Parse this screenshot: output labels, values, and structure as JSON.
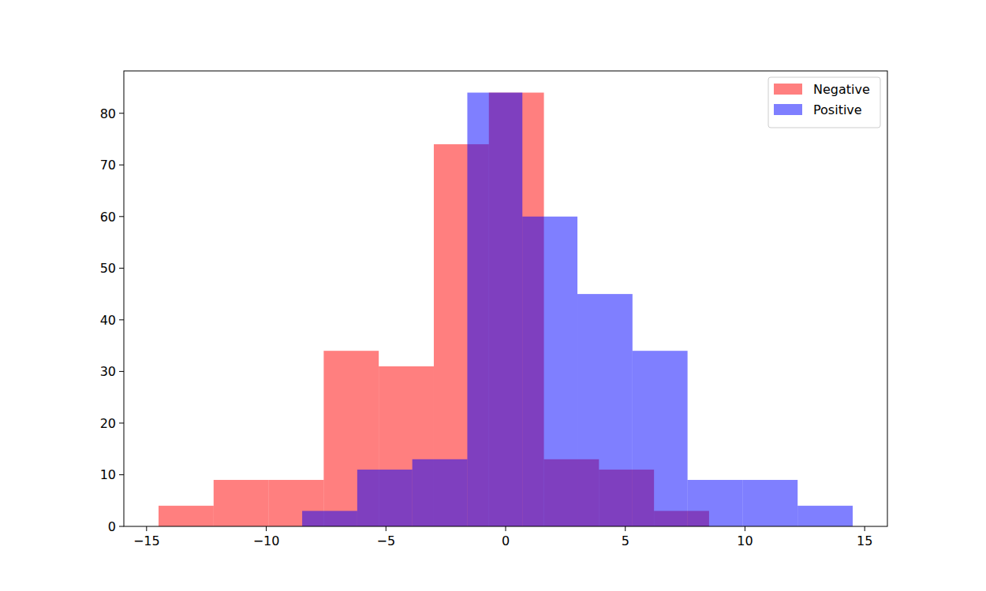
{
  "chart_data": {
    "type": "histogram",
    "series": [
      {
        "name": "Negative",
        "color": "red",
        "bins": [
          -14.5,
          -12.2,
          -9.9,
          -7.6,
          -5.3,
          -3.0,
          -0.7,
          1.6,
          3.9,
          6.2,
          8.5
        ],
        "values": [
          4,
          9,
          9,
          34,
          31,
          74,
          84,
          13,
          11,
          3
        ]
      },
      {
        "name": "Positive",
        "color": "blue",
        "bins": [
          -8.5,
          -6.2,
          -3.9,
          -1.6,
          0.7,
          3.0,
          5.3,
          7.6,
          9.9,
          12.2,
          14.5
        ],
        "values": [
          3,
          11,
          13,
          84,
          60,
          45,
          34,
          9,
          9,
          4
        ]
      }
    ],
    "xlim": [
      -15.95,
      15.95
    ],
    "ylim": [
      0,
      88.2
    ],
    "xticks": [
      {
        "value": -15,
        "label": "−15"
      },
      {
        "value": -10,
        "label": "−10"
      },
      {
        "value": -5,
        "label": "−5"
      },
      0,
      5,
      10,
      15
    ],
    "yticks": [
      0,
      10,
      20,
      30,
      40,
      50,
      60,
      70,
      80
    ],
    "legend": "upper right"
  }
}
